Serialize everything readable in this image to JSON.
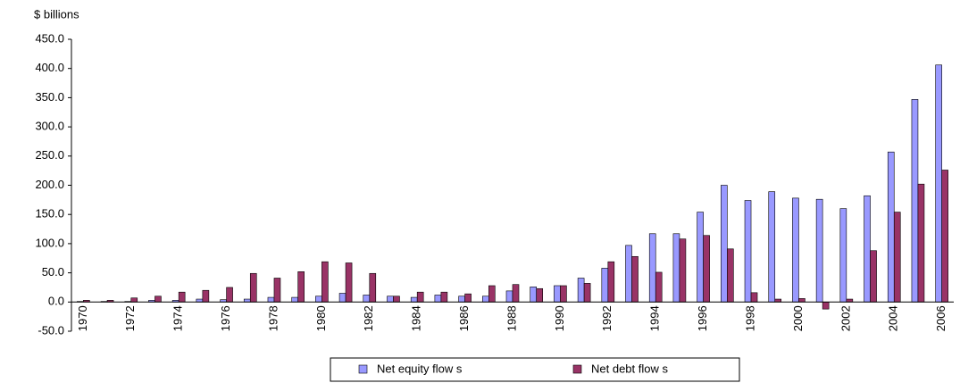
{
  "chart_data": {
    "type": "bar",
    "y_label": "$ billions",
    "categories": [
      "1970",
      null,
      "1972",
      null,
      "1974",
      null,
      "1976",
      null,
      "1978",
      null,
      "1980",
      null,
      "1982",
      null,
      "1984",
      null,
      "1986",
      null,
      "1988",
      null,
      "1990",
      null,
      "1992",
      null,
      "1994",
      null,
      "1996",
      null,
      "1998",
      null,
      "2000",
      null,
      "2002",
      null,
      "2004",
      null,
      "2006"
    ],
    "series": [
      {
        "name": "Net equity flow s",
        "color": "#9999ff",
        "values": [
          1,
          1,
          1,
          3,
          3,
          5,
          4,
          5,
          8,
          8,
          10,
          15,
          12,
          10,
          8,
          12,
          10,
          10,
          19,
          26,
          28,
          41,
          58,
          97,
          117,
          117,
          154,
          200,
          174,
          189,
          178,
          176,
          160,
          182,
          257,
          347,
          406
        ]
      },
      {
        "name": "Net debt flow s",
        "color": "#993366",
        "values": [
          3,
          3,
          7,
          10,
          17,
          20,
          25,
          49,
          41,
          52,
          69,
          67,
          49,
          10,
          17,
          17,
          14,
          28,
          30,
          23,
          28,
          32,
          69,
          78,
          51,
          108,
          114,
          91,
          16,
          5,
          6,
          -12,
          5,
          88,
          154,
          202,
          226
        ]
      }
    ],
    "ylim": [
      -50,
      450
    ],
    "yticks": [
      {
        "value": -50,
        "label": "-50.0"
      },
      {
        "value": 0,
        "label": "0.0"
      },
      {
        "value": 50,
        "label": "50.0"
      },
      {
        "value": 100,
        "label": "100.0"
      },
      {
        "value": 150,
        "label": "150.0"
      },
      {
        "value": 200,
        "label": "200.0"
      },
      {
        "value": 250,
        "label": "250.0"
      },
      {
        "value": 300,
        "label": "300.0"
      },
      {
        "value": 350,
        "label": "350.0"
      },
      {
        "value": 400,
        "label": "400.0"
      },
      {
        "value": 450,
        "label": "450.0"
      }
    ],
    "grid": false,
    "legend": "bottom"
  }
}
